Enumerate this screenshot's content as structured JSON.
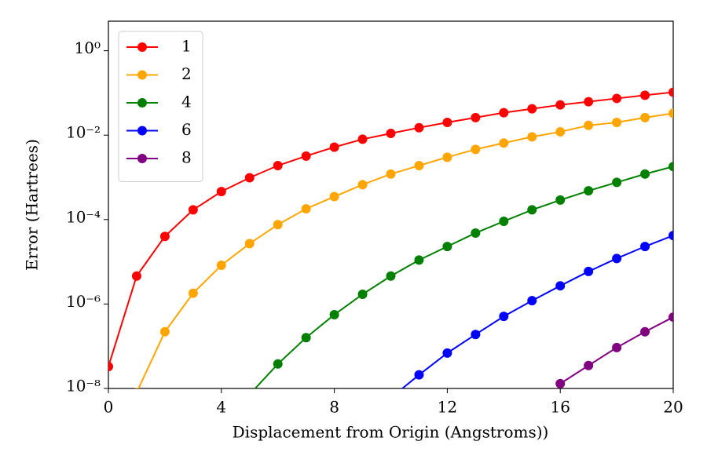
{
  "chart_data": {
    "type": "line",
    "x_label": "Displacement from Origin (Angstroms))",
    "y_label": "Error (Hartrees)",
    "x": [
      0,
      1,
      2,
      3,
      4,
      5,
      6,
      7,
      8,
      9,
      10,
      11,
      12,
      13,
      14,
      15,
      16,
      17,
      18,
      19,
      20
    ],
    "series": [
      {
        "name": "1",
        "color": "#ff0000",
        "values": [
          3.3e-08,
          4.6e-06,
          4e-05,
          0.00017,
          0.00046,
          0.00098,
          0.0019,
          0.0032,
          0.0052,
          0.008,
          0.011,
          0.015,
          0.02,
          0.026,
          0.034,
          0.042,
          0.052,
          0.062,
          0.074,
          0.088,
          0.104
        ]
      },
      {
        "name": "2",
        "color": "#ffa500",
        "values": [
          null,
          8e-09,
          2.2e-07,
          1.8e-06,
          8.3e-06,
          2.7e-05,
          7.6e-05,
          0.00018,
          0.00035,
          0.00067,
          0.0012,
          0.0019,
          0.003,
          0.0046,
          0.0065,
          0.0091,
          0.012,
          0.017,
          0.02,
          0.026,
          0.033
        ]
      },
      {
        "name": "4",
        "color": "#008000",
        "values": [
          null,
          null,
          null,
          null,
          null,
          7.2e-09,
          3.8e-08,
          1.6e-07,
          5.6e-07,
          1.7e-06,
          4.6e-06,
          1.1e-05,
          2.3e-05,
          4.8e-05,
          9.1e-05,
          0.00017,
          0.00029,
          0.00048,
          0.00076,
          0.0012,
          0.0018
        ]
      },
      {
        "name": "6",
        "color": "#0000ff",
        "values": [
          null,
          null,
          null,
          null,
          null,
          null,
          null,
          null,
          null,
          null,
          6e-09,
          2.1e-08,
          6.9e-08,
          1.9e-07,
          5.1e-07,
          1.2e-06,
          2.7e-06,
          5.9e-06,
          1.2e-05,
          2.3e-05,
          4.2e-05
        ]
      },
      {
        "name": "8",
        "color": "#800080",
        "values": [
          null,
          null,
          null,
          null,
          null,
          null,
          null,
          null,
          null,
          null,
          null,
          null,
          null,
          null,
          null,
          null,
          1.3e-08,
          3.5e-08,
          9.3e-08,
          2.2e-07,
          4.9e-07
        ]
      }
    ],
    "xlim": [
      0,
      20
    ],
    "xticks": [
      0,
      4,
      8,
      12,
      16,
      20
    ],
    "ylim": [
      1e-08,
      5
    ],
    "y_scale": "log",
    "yticks": [
      {
        "value": 1,
        "label": "10⁰"
      },
      {
        "value": 0.01,
        "label": "10⁻²"
      },
      {
        "value": 0.0001,
        "label": "10⁻⁴"
      },
      {
        "value": 1e-06,
        "label": "10⁻⁶"
      },
      {
        "value": 1e-08,
        "label": "10⁻⁸"
      }
    ],
    "legend": "upper left",
    "grid": false
  }
}
